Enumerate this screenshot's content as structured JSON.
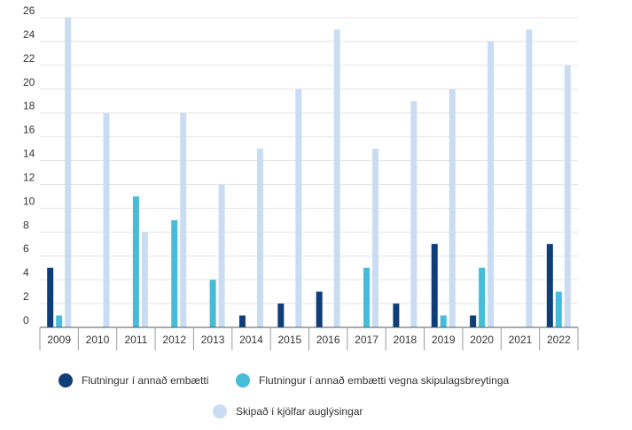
{
  "colors": {
    "series1": "#0f3d78",
    "series2": "#47bcd8",
    "series3": "#c9dcf2",
    "grid": "#e4e4e4",
    "axis": "#555555"
  },
  "chart_data": {
    "type": "bar",
    "categories": [
      "2009",
      "2010",
      "2011",
      "2012",
      "2013",
      "2014",
      "2015",
      "2016",
      "2017",
      "2018",
      "2019",
      "2020",
      "2021",
      "2022"
    ],
    "series": [
      {
        "name": "Flutningur í annað embætti",
        "values": [
          5,
          0,
          0,
          0,
          0,
          1,
          2,
          3,
          0,
          2,
          7,
          1,
          0,
          7
        ]
      },
      {
        "name": "Flutningur í annað embætti vegna skipulagsbreytinga",
        "values": [
          1,
          0,
          11,
          9,
          4,
          0,
          0,
          0,
          5,
          0,
          1,
          5,
          0,
          3
        ]
      },
      {
        "name": "Skipað í kjölfar auglýsingar",
        "values": [
          26,
          18,
          8,
          18,
          12,
          15,
          20,
          25,
          15,
          19,
          20,
          24,
          25,
          22
        ]
      }
    ],
    "y_ticks": [
      0,
      2,
      4,
      6,
      8,
      10,
      12,
      14,
      16,
      18,
      20,
      22,
      24,
      26
    ],
    "ylim": [
      0,
      26
    ],
    "grid": true,
    "legend": "bottom",
    "title": "",
    "xlabel": "",
    "ylabel": ""
  },
  "legend": {
    "items": [
      {
        "label": "Flutningur í annað embætti"
      },
      {
        "label": "Flutningur í annað embætti vegna skipulagsbreytinga"
      },
      {
        "label": "Skipað í kjölfar auglýsingar"
      }
    ]
  }
}
